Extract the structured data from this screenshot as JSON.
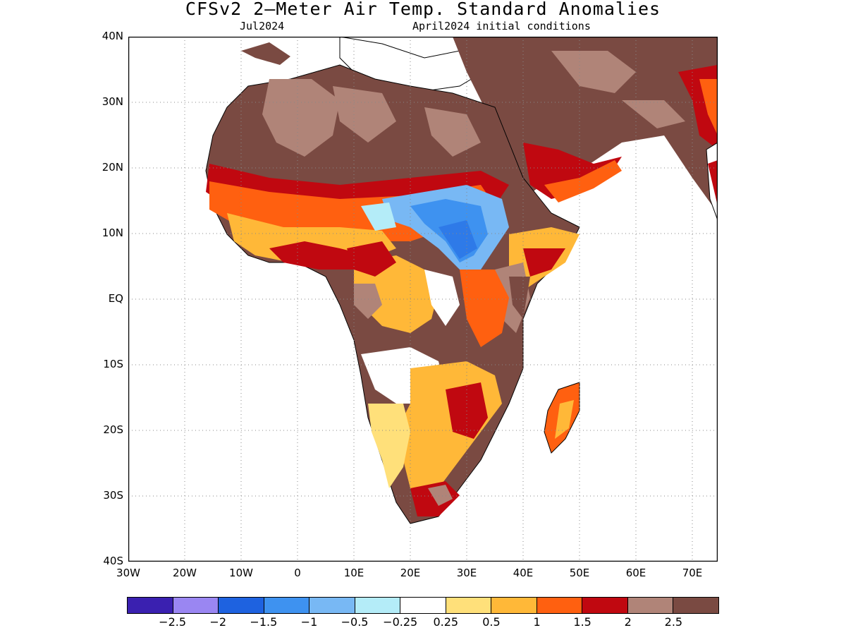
{
  "title": "CFSv2 2–Meter Air Temp. Standard Anomalies",
  "subtitle_left": "Jul2024",
  "subtitle_right": "April2024 initial conditions",
  "y_ticks": [
    "40N",
    "30N",
    "20N",
    "10N",
    "EQ",
    "10S",
    "20S",
    "30S",
    "40S"
  ],
  "x_ticks": [
    "30W",
    "20W",
    "10W",
    "0",
    "10E",
    "20E",
    "30E",
    "40E",
    "50E",
    "60E",
    "70E"
  ],
  "legend": {
    "colors": [
      "#3a20b0",
      "#9a86f2",
      "#1e62e0",
      "#3e92f0",
      "#78b8f4",
      "#b4ecf8",
      "#ffffff",
      "#ffe07a",
      "#ffb838",
      "#ff6010",
      "#c00810",
      "#b08478",
      "#7a4a42"
    ],
    "labels": [
      "−2.5",
      "−2",
      "−1.5",
      "−1",
      "−0.5",
      "−0.25",
      "0.25",
      "0.5",
      "1",
      "1.5",
      "2",
      "2.5"
    ]
  }
}
